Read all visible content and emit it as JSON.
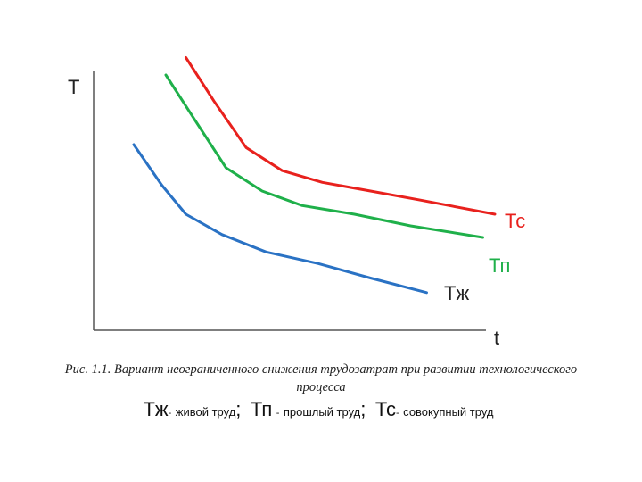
{
  "chart_data": {
    "type": "line",
    "xlabel": "t",
    "ylabel": "T",
    "series": [
      {
        "name": "Тс",
        "color": "#e8211d",
        "points": [
          [
            0.23,
            0.94
          ],
          [
            0.3,
            0.79
          ],
          [
            0.38,
            0.63
          ],
          [
            0.47,
            0.55
          ],
          [
            0.57,
            0.51
          ],
          [
            0.69,
            0.48
          ],
          [
            0.81,
            0.45
          ],
          [
            1.0,
            0.4
          ]
        ]
      },
      {
        "name": "Тп",
        "color": "#1fb04a",
        "points": [
          [
            0.18,
            0.88
          ],
          [
            0.25,
            0.73
          ],
          [
            0.33,
            0.56
          ],
          [
            0.42,
            0.48
          ],
          [
            0.52,
            0.43
          ],
          [
            0.65,
            0.4
          ],
          [
            0.79,
            0.36
          ],
          [
            0.97,
            0.32
          ]
        ]
      },
      {
        "name": "Тж",
        "color": "#2a72c4",
        "points": [
          [
            0.1,
            0.64
          ],
          [
            0.17,
            0.5
          ],
          [
            0.23,
            0.4
          ],
          [
            0.32,
            0.33
          ],
          [
            0.43,
            0.27
          ],
          [
            0.56,
            0.23
          ],
          [
            0.69,
            0.18
          ],
          [
            0.83,
            0.13
          ]
        ]
      }
    ]
  },
  "caption": {
    "line1": "Рис. 1.1. Вариант неограниченного снижения трудозатрат при развитии технологического",
    "line2": "процесса"
  },
  "legend": {
    "items": [
      {
        "symbol": "Тж",
        "dash": "-",
        "text": "живой труд",
        "sep": ";"
      },
      {
        "symbol": "Тп",
        "dash": "-",
        "text": "прошлый труд",
        "sep": ";"
      },
      {
        "symbol": "Тс",
        "dash": "-",
        "text": "совокупный труд",
        "sep": ""
      }
    ]
  }
}
